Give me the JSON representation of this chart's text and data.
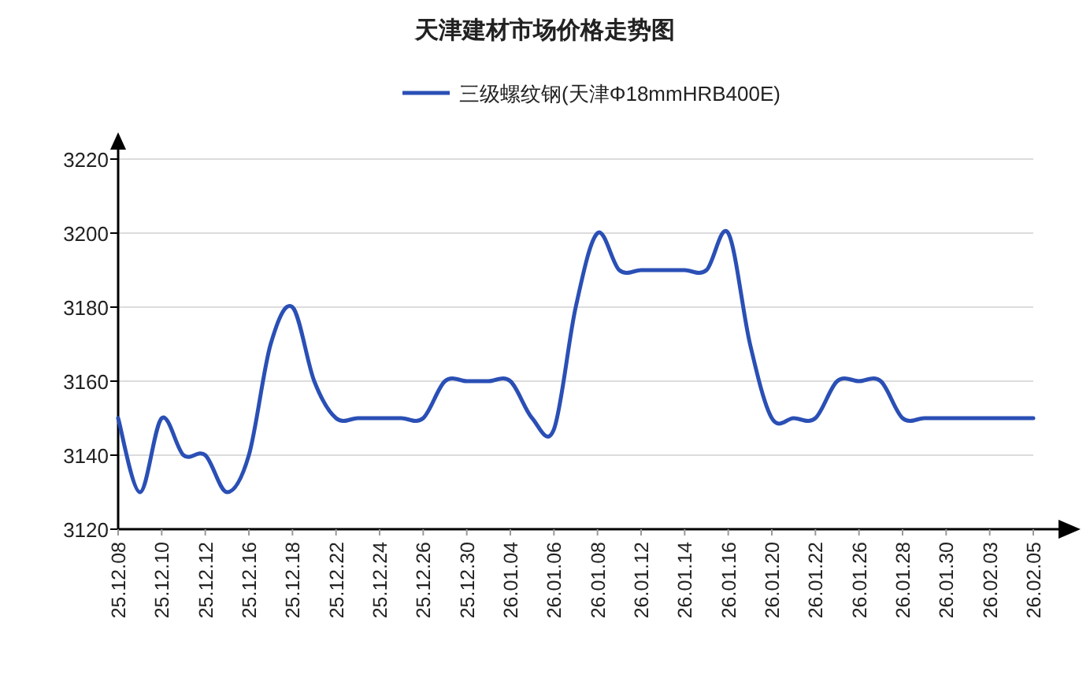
{
  "chart_data": {
    "type": "line",
    "title": "天津建材市场价格走势图",
    "categories": [
      "25.12.08",
      null,
      "25.12.10",
      null,
      "25.12.12",
      null,
      "25.12.16",
      null,
      "25.12.18",
      null,
      "25.12.22",
      null,
      "25.12.24",
      null,
      "25.12.26",
      null,
      "25.12.30",
      null,
      "26.01.04",
      null,
      "26.01.06",
      null,
      "26.01.08",
      null,
      "26.01.12",
      null,
      "26.01.14",
      null,
      "26.01.16",
      null,
      "26.01.20",
      null,
      "26.01.22",
      null,
      "26.01.26",
      null,
      "26.01.28",
      null,
      "26.01.30",
      null,
      "26.02.03",
      null,
      "26.02.05"
    ],
    "series": [
      {
        "name": "三级螺纹钢(天津Φ18mmHRB400E)",
        "color": "#2a4fb5",
        "values": [
          3150,
          3130,
          3150,
          3140,
          3140,
          3130,
          3140,
          3170,
          3180,
          3160,
          3150,
          3150,
          3150,
          3150,
          3150,
          3160,
          3160,
          3160,
          3160,
          3150,
          3147,
          3180,
          3200,
          3190,
          3190,
          3190,
          3190,
          3190,
          3200,
          3170,
          3150,
          3150,
          3150,
          3160,
          3160,
          3160,
          3150,
          3150,
          3150,
          3150,
          3150,
          3150,
          3150
        ]
      }
    ],
    "ylim": [
      3120,
      3220
    ],
    "yticks": [
      3120,
      3140,
      3160,
      3180,
      3200,
      3220
    ],
    "grid": "y",
    "legend": "top",
    "marker": "none",
    "line_style": "solid"
  }
}
